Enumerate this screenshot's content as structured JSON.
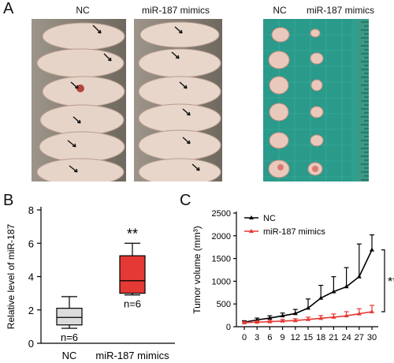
{
  "panels": {
    "a": {
      "letter": "A",
      "left_header": "NC",
      "mid_header": "miR-187 mimics",
      "right_header_nc": "NC",
      "right_header_mimics": "miR-187 mimics"
    },
    "b": {
      "letter": "B"
    },
    "c": {
      "letter": "C"
    }
  },
  "chart_data": [
    {
      "type": "box",
      "panel": "B",
      "ylabel": "Relative level of miR-187",
      "ylim": [
        0,
        8
      ],
      "yticks": [
        0,
        2,
        4,
        6,
        8
      ],
      "categories": [
        "NC",
        "miR-187 mimics"
      ],
      "boxes": [
        {
          "name": "NC",
          "min": 0.9,
          "q1": 1.1,
          "median": 1.55,
          "q3": 2.1,
          "max": 2.8,
          "n_label": "n=6",
          "color": "#dcdcdc"
        },
        {
          "name": "miR-187 mimics",
          "min": 2.9,
          "q1": 3.0,
          "median": 3.75,
          "q3": 5.25,
          "max": 6.0,
          "n_label": "n=6",
          "color": "#e53935"
        }
      ],
      "significance": "**"
    },
    {
      "type": "line",
      "panel": "C",
      "ylabel": "Tumor volume (mm³)",
      "ylim": [
        0,
        2500
      ],
      "yticks": [
        0,
        500,
        1000,
        1500,
        2000,
        2500
      ],
      "x": [
        0,
        3,
        6,
        9,
        12,
        15,
        18,
        21,
        24,
        27,
        30
      ],
      "series": [
        {
          "name": "NC",
          "color": "#000000",
          "values": [
            100,
            150,
            190,
            240,
            290,
            410,
            630,
            770,
            880,
            1100,
            1690
          ],
          "errors": [
            30,
            40,
            50,
            60,
            90,
            200,
            280,
            330,
            420,
            720,
            330
          ]
        },
        {
          "name": "miR-187 mimics",
          "color": "#e53935",
          "values": [
            90,
            100,
            110,
            125,
            135,
            160,
            185,
            210,
            240,
            285,
            330
          ],
          "errors": [
            20,
            25,
            30,
            35,
            40,
            50,
            60,
            70,
            90,
            110,
            140
          ]
        }
      ],
      "significance": "**"
    }
  ]
}
